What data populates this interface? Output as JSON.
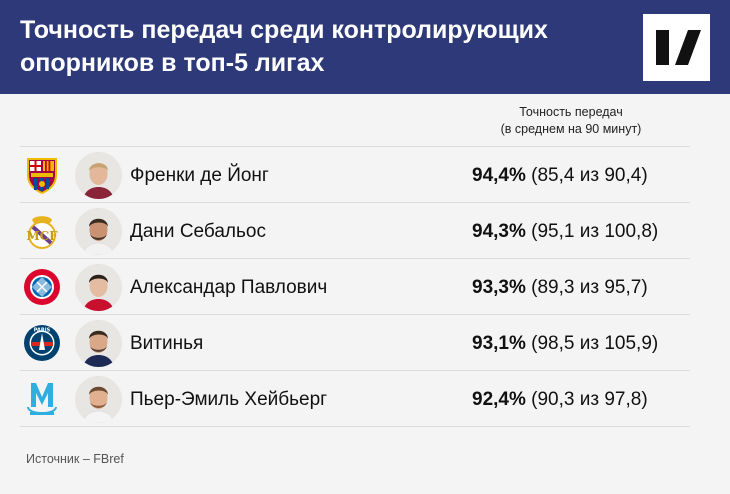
{
  "title": "Точность передач среди контролирующих опорников в топ-5 лигах",
  "column_header": {
    "line1": "Точность передач",
    "line2": "(в среднем на 90 минут)"
  },
  "source": "Источник – FBref",
  "colors": {
    "header_bg": "#2d3978",
    "page_bg": "#f4f4f4",
    "divider": "#dcdcdc"
  },
  "chart_data": {
    "type": "table",
    "columns": [
      "Точность передач (в среднем на 90 минут)"
    ],
    "rows": [
      {
        "club_icon": "barcelona-crest-icon",
        "name": "Френки де Йонг",
        "accuracy": "94,4%",
        "detail": "(85,4 из 90,4)",
        "value": 94.4,
        "completed": 85.4,
        "attempted": 90.4
      },
      {
        "club_icon": "real-madrid-crest-icon",
        "name": "Дани Себальос",
        "accuracy": "94,3%",
        "detail": "(95,1 из 100,8)",
        "value": 94.3,
        "completed": 95.1,
        "attempted": 100.8
      },
      {
        "club_icon": "bayern-crest-icon",
        "name": "Александар Павлович",
        "accuracy": "93,3%",
        "detail": "(89,3 из 95,7)",
        "value": 93.3,
        "completed": 89.3,
        "attempted": 95.7
      },
      {
        "club_icon": "psg-crest-icon",
        "name": "Витинья",
        "accuracy": "93,1%",
        "detail": "(98,5 из 105,9)",
        "value": 93.1,
        "completed": 98.5,
        "attempted": 105.9
      },
      {
        "club_icon": "marseille-crest-icon",
        "name": "Пьер-Эмиль Хейбьерг",
        "accuracy": "92,4%",
        "detail": "(90,3 из 97,8)",
        "value": 92.4,
        "completed": 90.3,
        "attempted": 97.8
      }
    ]
  }
}
